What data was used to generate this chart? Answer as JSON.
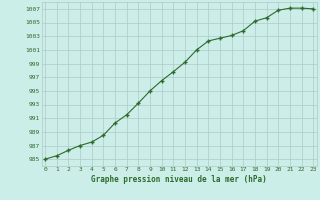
{
  "x": [
    0,
    1,
    2,
    3,
    4,
    5,
    6,
    7,
    8,
    9,
    10,
    11,
    12,
    13,
    14,
    15,
    16,
    17,
    18,
    19,
    20,
    21,
    22,
    23
  ],
  "y": [
    985.0,
    985.5,
    986.3,
    987.0,
    987.5,
    988.5,
    990.3,
    991.5,
    993.2,
    995.0,
    996.5,
    997.8,
    999.2,
    1001.0,
    1002.3,
    1002.7,
    1003.1,
    1003.8,
    1005.2,
    1005.7,
    1006.8,
    1007.1,
    1007.1,
    1007.0
  ],
  "ylim": [
    984,
    1008
  ],
  "xlim": [
    -0.3,
    23.3
  ],
  "yticks": [
    985,
    987,
    989,
    991,
    993,
    995,
    997,
    999,
    1001,
    1003,
    1005,
    1007
  ],
  "xticks": [
    0,
    1,
    2,
    3,
    4,
    5,
    6,
    7,
    8,
    9,
    10,
    11,
    12,
    13,
    14,
    15,
    16,
    17,
    18,
    19,
    20,
    21,
    22,
    23
  ],
  "xlabel": "Graphe pression niveau de la mer (hPa)",
  "line_color": "#2d6a2d",
  "marker": "+",
  "bg_color": "#cceee8",
  "grid_color": "#b0c8c8",
  "tick_color": "#2d6a2d",
  "label_color": "#2d6a2d"
}
